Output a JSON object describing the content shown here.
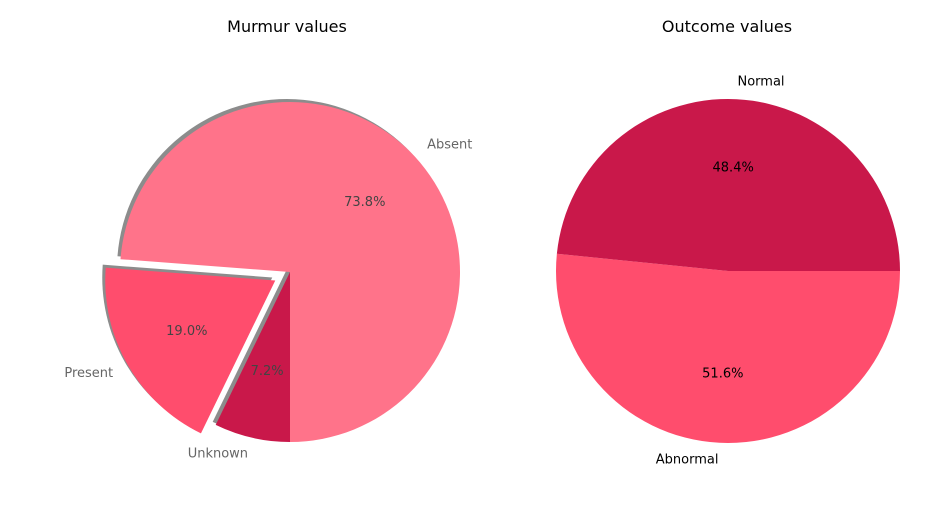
{
  "chart_data": [
    {
      "type": "pie",
      "title": "Murmur values",
      "labels": [
        "Absent",
        "Present",
        "Unknown"
      ],
      "values": [
        73.8,
        19.0,
        7.2
      ],
      "value_labels": [
        "73.8%",
        "19.0%",
        "7.2%"
      ],
      "colors": [
        "#ff738a",
        "#ff4d6d",
        "#c9184a"
      ],
      "exploded": [
        "Present"
      ],
      "shadow": true,
      "label_color": "#666666",
      "pct_color": "#444444"
    },
    {
      "type": "pie",
      "title": "Outcome values",
      "labels": [
        "Abnormal",
        "Normal"
      ],
      "values": [
        51.6,
        48.4
      ],
      "value_labels": [
        "51.6%",
        "48.4%"
      ],
      "colors": [
        "#ff4d6d",
        "#c9184a"
      ],
      "exploded": [],
      "shadow": false,
      "label_color": "#000000",
      "pct_color": "#000000"
    }
  ]
}
